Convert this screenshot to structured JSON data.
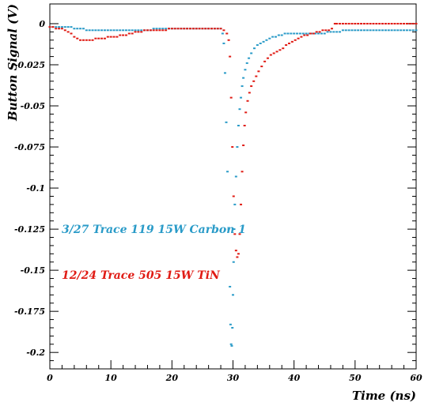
{
  "chart_data": {
    "type": "scatter",
    "xlabel": "Time (ns)",
    "ylabel": "Button Signal (V)",
    "xlim": [
      0,
      60
    ],
    "ylim": [
      -0.21,
      0.012
    ],
    "x_ticks": [
      0,
      10,
      20,
      30,
      40,
      50,
      60
    ],
    "y_ticks": [
      0,
      -0.025,
      -0.05,
      -0.075,
      -0.1,
      -0.125,
      -0.15,
      -0.175,
      -0.2
    ],
    "grid": false,
    "legend_placement": "center-left",
    "series": [
      {
        "name": "3/27 Trace 119 15W Carbon 1",
        "color": "#2a9bc8",
        "points": [
          [
            0.0,
            -0.002
          ],
          [
            0.5,
            -0.002
          ],
          [
            1.0,
            -0.002
          ],
          [
            1.5,
            -0.002
          ],
          [
            2.0,
            -0.002
          ],
          [
            2.5,
            -0.002
          ],
          [
            3.0,
            -0.002
          ],
          [
            3.5,
            -0.002
          ],
          [
            4.0,
            -0.003
          ],
          [
            4.5,
            -0.003
          ],
          [
            5.0,
            -0.003
          ],
          [
            5.5,
            -0.003
          ],
          [
            6.0,
            -0.004
          ],
          [
            6.5,
            -0.004
          ],
          [
            7.0,
            -0.004
          ],
          [
            7.5,
            -0.004
          ],
          [
            8.0,
            -0.004
          ],
          [
            8.5,
            -0.004
          ],
          [
            9.0,
            -0.004
          ],
          [
            9.5,
            -0.004
          ],
          [
            10.0,
            -0.004
          ],
          [
            10.5,
            -0.004
          ],
          [
            11.0,
            -0.004
          ],
          [
            11.5,
            -0.004
          ],
          [
            12.0,
            -0.004
          ],
          [
            12.5,
            -0.004
          ],
          [
            13.0,
            -0.004
          ],
          [
            13.5,
            -0.004
          ],
          [
            14.0,
            -0.004
          ],
          [
            14.5,
            -0.004
          ],
          [
            15.0,
            -0.004
          ],
          [
            15.5,
            -0.004
          ],
          [
            16.0,
            -0.004
          ],
          [
            16.5,
            -0.004
          ],
          [
            17.0,
            -0.003
          ],
          [
            17.5,
            -0.003
          ],
          [
            18.0,
            -0.003
          ],
          [
            18.5,
            -0.003
          ],
          [
            19.0,
            -0.003
          ],
          [
            19.5,
            -0.003
          ],
          [
            20.0,
            -0.003
          ],
          [
            20.5,
            -0.003
          ],
          [
            21.0,
            -0.003
          ],
          [
            21.5,
            -0.003
          ],
          [
            22.0,
            -0.003
          ],
          [
            22.5,
            -0.003
          ],
          [
            23.0,
            -0.003
          ],
          [
            23.5,
            -0.003
          ],
          [
            24.0,
            -0.003
          ],
          [
            24.5,
            -0.003
          ],
          [
            25.0,
            -0.003
          ],
          [
            25.5,
            -0.003
          ],
          [
            26.0,
            -0.003
          ],
          [
            26.5,
            -0.003
          ],
          [
            27.0,
            -0.003
          ],
          [
            27.5,
            -0.003
          ],
          [
            28.0,
            -0.003
          ],
          [
            28.3,
            -0.006
          ],
          [
            28.5,
            -0.012
          ],
          [
            28.7,
            -0.03
          ],
          [
            28.9,
            -0.06
          ],
          [
            29.1,
            -0.09
          ],
          [
            29.3,
            -0.125
          ],
          [
            29.5,
            -0.16
          ],
          [
            29.6,
            -0.183
          ],
          [
            29.7,
            -0.195
          ],
          [
            29.8,
            -0.196
          ],
          [
            29.9,
            -0.185
          ],
          [
            30.0,
            -0.165
          ],
          [
            30.1,
            -0.145
          ],
          [
            30.2,
            -0.125
          ],
          [
            30.3,
            -0.11
          ],
          [
            30.5,
            -0.093
          ],
          [
            30.7,
            -0.075
          ],
          [
            30.9,
            -0.062
          ],
          [
            31.1,
            -0.052
          ],
          [
            31.3,
            -0.045
          ],
          [
            31.5,
            -0.038
          ],
          [
            31.7,
            -0.033
          ],
          [
            32.0,
            -0.028
          ],
          [
            32.3,
            -0.024
          ],
          [
            32.6,
            -0.021
          ],
          [
            33.0,
            -0.018
          ],
          [
            33.5,
            -0.015
          ],
          [
            34.0,
            -0.013
          ],
          [
            34.5,
            -0.012
          ],
          [
            35.0,
            -0.011
          ],
          [
            35.5,
            -0.01
          ],
          [
            36.0,
            -0.009
          ],
          [
            36.5,
            -0.008
          ],
          [
            37.0,
            -0.008
          ],
          [
            37.5,
            -0.007
          ],
          [
            38.0,
            -0.007
          ],
          [
            38.5,
            -0.006
          ],
          [
            39.0,
            -0.006
          ],
          [
            39.5,
            -0.006
          ],
          [
            40.0,
            -0.006
          ],
          [
            40.5,
            -0.006
          ],
          [
            41.0,
            -0.006
          ],
          [
            41.5,
            -0.006
          ],
          [
            42.0,
            -0.006
          ],
          [
            42.5,
            -0.006
          ],
          [
            43.0,
            -0.006
          ],
          [
            43.5,
            -0.006
          ],
          [
            44.0,
            -0.006
          ],
          [
            44.5,
            -0.006
          ],
          [
            45.0,
            -0.006
          ],
          [
            45.5,
            -0.005
          ],
          [
            46.0,
            -0.005
          ],
          [
            46.5,
            -0.005
          ],
          [
            47.0,
            -0.005
          ],
          [
            47.5,
            -0.005
          ],
          [
            48.0,
            -0.004
          ],
          [
            48.5,
            -0.004
          ],
          [
            49.0,
            -0.004
          ],
          [
            49.5,
            -0.004
          ],
          [
            50.0,
            -0.004
          ],
          [
            50.5,
            -0.004
          ],
          [
            51.0,
            -0.004
          ],
          [
            51.5,
            -0.004
          ],
          [
            52.0,
            -0.004
          ],
          [
            52.5,
            -0.004
          ],
          [
            53.0,
            -0.004
          ],
          [
            53.5,
            -0.004
          ],
          [
            54.0,
            -0.004
          ],
          [
            54.5,
            -0.004
          ],
          [
            55.0,
            -0.004
          ],
          [
            55.5,
            -0.004
          ],
          [
            56.0,
            -0.004
          ],
          [
            56.5,
            -0.004
          ],
          [
            57.0,
            -0.004
          ],
          [
            57.5,
            -0.004
          ],
          [
            58.0,
            -0.004
          ],
          [
            58.5,
            -0.004
          ],
          [
            59.0,
            -0.004
          ],
          [
            59.5,
            -0.004
          ],
          [
            60.0,
            -0.004
          ]
        ]
      },
      {
        "name": "12/24 Trace 505 15W TiN",
        "color": "#e01b14",
        "points": [
          [
            0.0,
            -0.002
          ],
          [
            0.5,
            -0.002
          ],
          [
            1.0,
            -0.003
          ],
          [
            1.5,
            -0.003
          ],
          [
            2.0,
            -0.003
          ],
          [
            2.5,
            -0.004
          ],
          [
            3.0,
            -0.005
          ],
          [
            3.5,
            -0.006
          ],
          [
            4.0,
            -0.008
          ],
          [
            4.5,
            -0.009
          ],
          [
            5.0,
            -0.01
          ],
          [
            5.5,
            -0.01
          ],
          [
            6.0,
            -0.01
          ],
          [
            6.5,
            -0.01
          ],
          [
            7.0,
            -0.01
          ],
          [
            7.5,
            -0.009
          ],
          [
            8.0,
            -0.009
          ],
          [
            8.5,
            -0.009
          ],
          [
            9.0,
            -0.009
          ],
          [
            9.5,
            -0.008
          ],
          [
            10.0,
            -0.008
          ],
          [
            10.5,
            -0.008
          ],
          [
            11.0,
            -0.008
          ],
          [
            11.5,
            -0.007
          ],
          [
            12.0,
            -0.007
          ],
          [
            12.5,
            -0.007
          ],
          [
            13.0,
            -0.006
          ],
          [
            13.5,
            -0.006
          ],
          [
            14.0,
            -0.005
          ],
          [
            14.5,
            -0.005
          ],
          [
            15.0,
            -0.005
          ],
          [
            15.5,
            -0.004
          ],
          [
            16.0,
            -0.004
          ],
          [
            16.5,
            -0.004
          ],
          [
            17.0,
            -0.004
          ],
          [
            17.5,
            -0.004
          ],
          [
            18.0,
            -0.004
          ],
          [
            18.5,
            -0.004
          ],
          [
            19.0,
            -0.004
          ],
          [
            19.5,
            -0.003
          ],
          [
            20.0,
            -0.003
          ],
          [
            20.5,
            -0.003
          ],
          [
            21.0,
            -0.003
          ],
          [
            21.5,
            -0.003
          ],
          [
            22.0,
            -0.003
          ],
          [
            22.5,
            -0.003
          ],
          [
            23.0,
            -0.003
          ],
          [
            23.5,
            -0.003
          ],
          [
            24.0,
            -0.003
          ],
          [
            24.5,
            -0.003
          ],
          [
            25.0,
            -0.003
          ],
          [
            25.5,
            -0.003
          ],
          [
            26.0,
            -0.003
          ],
          [
            26.5,
            -0.003
          ],
          [
            27.0,
            -0.003
          ],
          [
            27.5,
            -0.003
          ],
          [
            28.0,
            -0.003
          ],
          [
            28.5,
            -0.004
          ],
          [
            29.0,
            -0.006
          ],
          [
            29.3,
            -0.01
          ],
          [
            29.5,
            -0.02
          ],
          [
            29.7,
            -0.045
          ],
          [
            29.9,
            -0.075
          ],
          [
            30.1,
            -0.105
          ],
          [
            30.3,
            -0.128
          ],
          [
            30.5,
            -0.138
          ],
          [
            30.7,
            -0.142
          ],
          [
            30.9,
            -0.14
          ],
          [
            31.1,
            -0.128
          ],
          [
            31.3,
            -0.11
          ],
          [
            31.5,
            -0.09
          ],
          [
            31.7,
            -0.074
          ],
          [
            31.9,
            -0.062
          ],
          [
            32.1,
            -0.054
          ],
          [
            32.4,
            -0.047
          ],
          [
            32.7,
            -0.042
          ],
          [
            33.0,
            -0.038
          ],
          [
            33.4,
            -0.035
          ],
          [
            33.8,
            -0.032
          ],
          [
            34.2,
            -0.029
          ],
          [
            34.7,
            -0.026
          ],
          [
            35.2,
            -0.023
          ],
          [
            35.7,
            -0.021
          ],
          [
            36.2,
            -0.019
          ],
          [
            36.7,
            -0.018
          ],
          [
            37.2,
            -0.017
          ],
          [
            37.7,
            -0.016
          ],
          [
            38.2,
            -0.015
          ],
          [
            38.7,
            -0.013
          ],
          [
            39.2,
            -0.012
          ],
          [
            39.7,
            -0.011
          ],
          [
            40.2,
            -0.01
          ],
          [
            40.7,
            -0.009
          ],
          [
            41.2,
            -0.008
          ],
          [
            41.7,
            -0.007
          ],
          [
            42.2,
            -0.007
          ],
          [
            42.7,
            -0.006
          ],
          [
            43.2,
            -0.006
          ],
          [
            43.7,
            -0.005
          ],
          [
            44.2,
            -0.005
          ],
          [
            44.7,
            -0.004
          ],
          [
            45.2,
            -0.004
          ],
          [
            45.7,
            -0.004
          ],
          [
            46.2,
            -0.003
          ],
          [
            46.7,
            0.0
          ],
          [
            47.0,
            0.0
          ],
          [
            47.5,
            0.0
          ],
          [
            48.0,
            0.0
          ],
          [
            48.5,
            0.0
          ],
          [
            49.0,
            0.0
          ],
          [
            49.5,
            0.0
          ],
          [
            50.0,
            0.0
          ],
          [
            50.5,
            0.0
          ],
          [
            51.0,
            0.0
          ],
          [
            51.5,
            0.0
          ],
          [
            52.0,
            0.0
          ],
          [
            52.5,
            0.0
          ],
          [
            53.0,
            0.0
          ],
          [
            53.5,
            0.0
          ],
          [
            54.0,
            0.0
          ],
          [
            54.5,
            0.0
          ],
          [
            55.0,
            0.0
          ],
          [
            55.5,
            0.0
          ],
          [
            56.0,
            0.0
          ],
          [
            56.5,
            0.0
          ],
          [
            57.0,
            0.0
          ],
          [
            57.5,
            0.0
          ],
          [
            58.0,
            0.0
          ],
          [
            58.5,
            0.0
          ],
          [
            59.0,
            0.0
          ],
          [
            59.5,
            0.0
          ],
          [
            60.0,
            0.0
          ]
        ]
      }
    ]
  }
}
